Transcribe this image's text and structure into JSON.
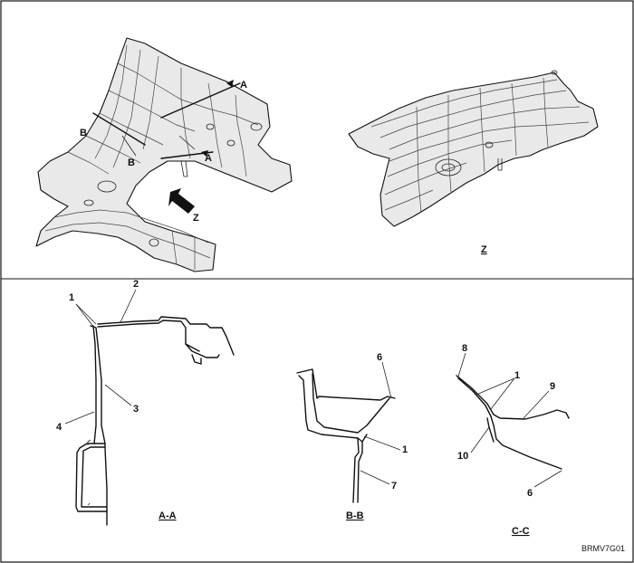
{
  "views": {
    "iso_left": {
      "section_marks": [
        "A",
        "A",
        "B",
        "B"
      ],
      "direction_label": "Z"
    },
    "iso_right": {
      "caption": "Z"
    }
  },
  "sections": {
    "aa": {
      "caption": "A-A",
      "callouts": [
        "1",
        "2",
        "3",
        "4"
      ]
    },
    "bb": {
      "caption": "B-B",
      "callouts": [
        "6",
        "1",
        "7"
      ]
    },
    "cc": {
      "caption": "C-C",
      "callouts": [
        "8",
        "1",
        "9",
        "10",
        "6"
      ]
    }
  },
  "figure_code": "BRMV7G01"
}
